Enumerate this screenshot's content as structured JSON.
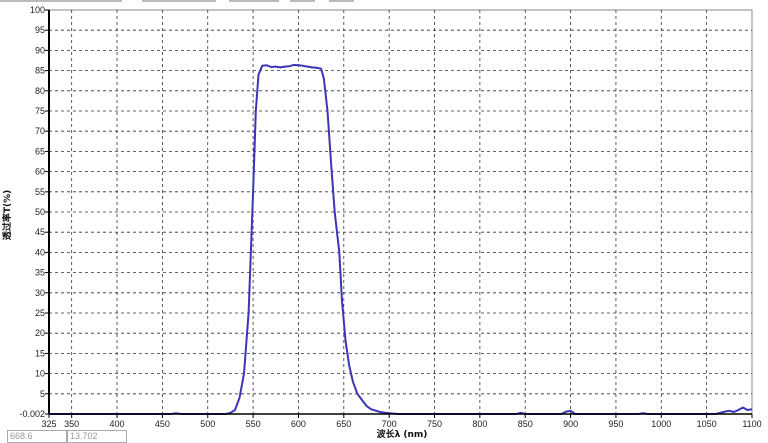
{
  "chart_data": {
    "type": "line",
    "title": "",
    "xlabel": "波长λ (nm)",
    "ylabel": "透过率T(%)",
    "xlim": [
      325,
      1100
    ],
    "ylim": [
      -0.002,
      100
    ],
    "grid": true,
    "x_ticks": [
      "325",
      "350",
      "400",
      "450",
      "500",
      "550",
      "600",
      "650",
      "700",
      "750",
      "800",
      "850",
      "900",
      "950",
      "1000",
      "1050",
      "1100"
    ],
    "y_ticks": [
      "-0.002",
      "5",
      "10",
      "15",
      "20",
      "25",
      "30",
      "35",
      "40",
      "45",
      "50",
      "55",
      "60",
      "65",
      "70",
      "75",
      "80",
      "85",
      "90",
      "95",
      "100"
    ],
    "line_color": "#3b35b8",
    "series": [
      {
        "points": [
          [
            325,
            0
          ],
          [
            460,
            0
          ],
          [
            465,
            0.2
          ],
          [
            470,
            0
          ],
          [
            520,
            0
          ],
          [
            525,
            0.3
          ],
          [
            530,
            1
          ],
          [
            535,
            4
          ],
          [
            540,
            10
          ],
          [
            545,
            25
          ],
          [
            550,
            55
          ],
          [
            553,
            75
          ],
          [
            556,
            84
          ],
          [
            560,
            86.2
          ],
          [
            565,
            86.3
          ],
          [
            570,
            85.9
          ],
          [
            575,
            86
          ],
          [
            580,
            85.8
          ],
          [
            585,
            86
          ],
          [
            590,
            86.1
          ],
          [
            595,
            86.4
          ],
          [
            600,
            86.3
          ],
          [
            605,
            86.2
          ],
          [
            610,
            86
          ],
          [
            615,
            85.8
          ],
          [
            620,
            85.7
          ],
          [
            625,
            85.5
          ],
          [
            628,
            83
          ],
          [
            632,
            75
          ],
          [
            636,
            62
          ],
          [
            640,
            50
          ],
          [
            645,
            40
          ],
          [
            648,
            28
          ],
          [
            652,
            18
          ],
          [
            656,
            12
          ],
          [
            660,
            8
          ],
          [
            665,
            5
          ],
          [
            670,
            3.5
          ],
          [
            675,
            2
          ],
          [
            680,
            1.2
          ],
          [
            690,
            0.5
          ],
          [
            700,
            0.2
          ],
          [
            710,
            0
          ],
          [
            840,
            0
          ],
          [
            845,
            0.3
          ],
          [
            850,
            0
          ],
          [
            890,
            0
          ],
          [
            895,
            0.6
          ],
          [
            900,
            0.8
          ],
          [
            905,
            0
          ],
          [
            975,
            0
          ],
          [
            980,
            0.2
          ],
          [
            985,
            0
          ],
          [
            1060,
            0
          ],
          [
            1065,
            0.3
          ],
          [
            1070,
            0.6
          ],
          [
            1075,
            0.8
          ],
          [
            1080,
            0.5
          ],
          [
            1085,
            1.0
          ],
          [
            1090,
            1.6
          ],
          [
            1095,
            1.0
          ],
          [
            1100,
            1.2
          ]
        ]
      }
    ]
  },
  "readouts": {
    "x_value": "668.6",
    "y_value": "13.702"
  }
}
